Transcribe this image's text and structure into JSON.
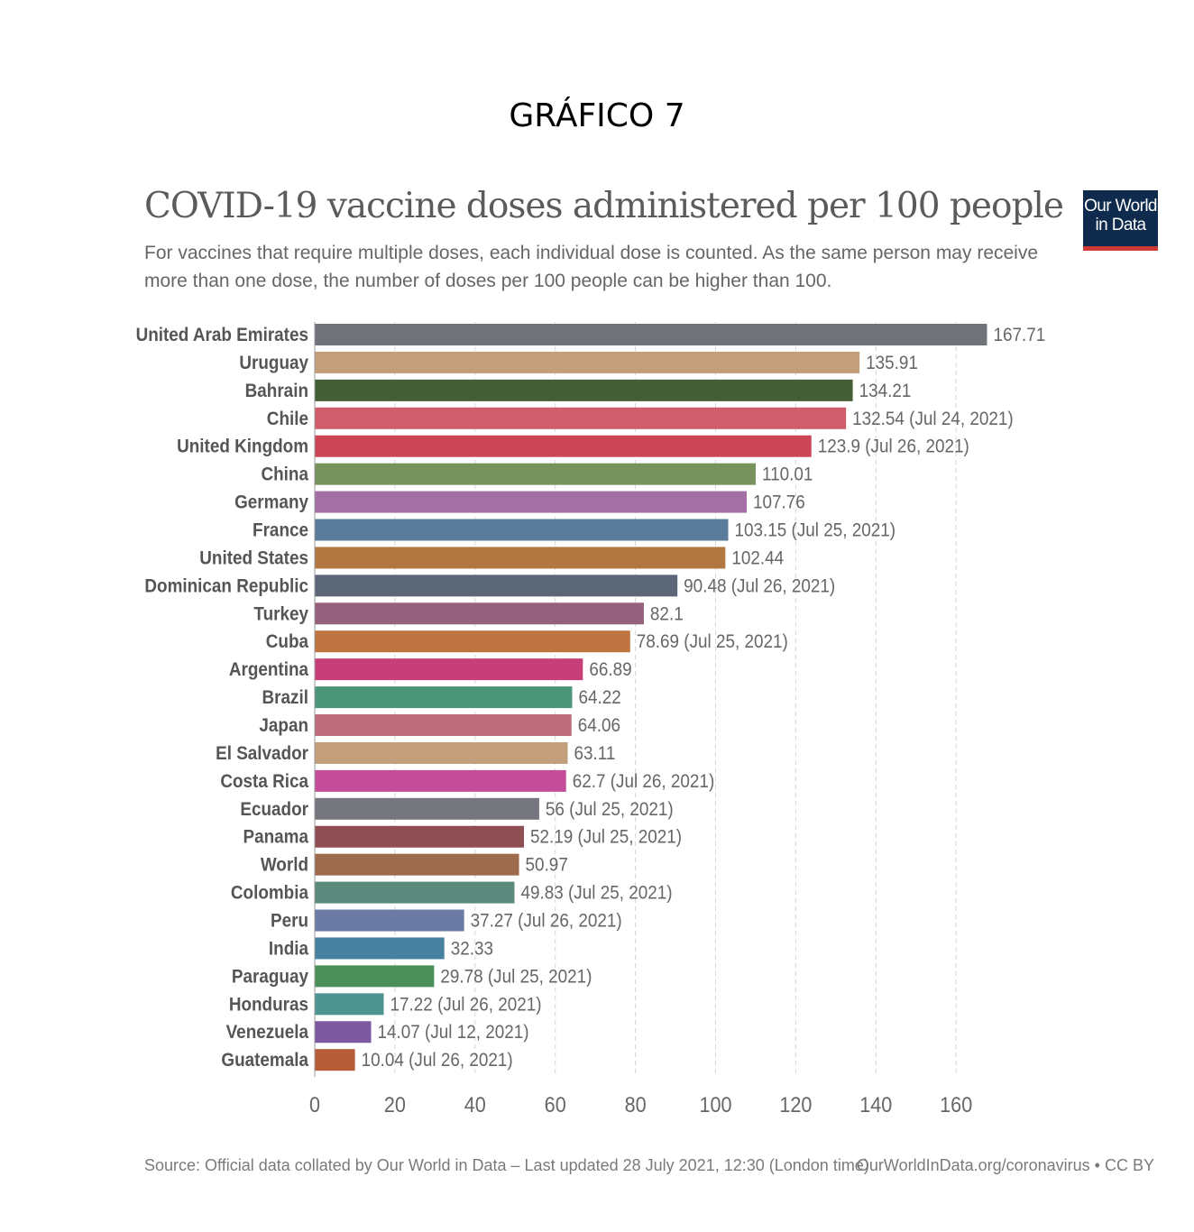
{
  "heading": "GRÁFICO 7",
  "logo": {
    "line1": "Our World",
    "line2": "in Data"
  },
  "footer": {
    "source": "Source: Official data collated by Our World in Data – Last updated 28 July 2021, 12:30 (London time)",
    "url": "OurWorldInData.org/coronavirus • CC BY"
  },
  "chart_data": {
    "type": "bar",
    "orientation": "horizontal",
    "title": "COVID-19 vaccine doses administered per 100 people",
    "subtitle": "For vaccines that require multiple doses, each individual dose is counted. As the same person may receive more than one dose, the number of doses per 100 people can be higher than 100.",
    "xlim": [
      0,
      170
    ],
    "xticks": [
      0,
      20,
      40,
      60,
      80,
      100,
      120,
      140,
      160
    ],
    "grid": "vertical dashed",
    "categories": [
      "United Arab Emirates",
      "Uruguay",
      "Bahrain",
      "Chile",
      "United Kingdom",
      "China",
      "Germany",
      "France",
      "United States",
      "Dominican Republic",
      "Turkey",
      "Cuba",
      "Argentina",
      "Brazil",
      "Japan",
      "El Salvador",
      "Costa Rica",
      "Ecuador",
      "Panama",
      "World",
      "Colombia",
      "Peru",
      "India",
      "Paraguay",
      "Honduras",
      "Venezuela",
      "Guatemala"
    ],
    "values": [
      167.71,
      135.91,
      134.21,
      132.54,
      123.9,
      110.01,
      107.76,
      103.15,
      102.44,
      90.48,
      82.1,
      78.69,
      66.89,
      64.22,
      64.06,
      63.11,
      62.7,
      56,
      52.19,
      50.97,
      49.83,
      37.27,
      32.33,
      29.78,
      17.22,
      14.07,
      10.04
    ],
    "labels": [
      "167.71",
      "135.91",
      "134.21",
      "132.54 (Jul 24, 2021)",
      "123.9 (Jul 26, 2021)",
      "110.01",
      "107.76",
      "103.15 (Jul 25, 2021)",
      "102.44",
      "90.48 (Jul 26, 2021)",
      "82.1",
      "78.69 (Jul 25, 2021)",
      "66.89",
      "64.22",
      "64.06",
      "63.11",
      "62.7 (Jul 26, 2021)",
      "56 (Jul 25, 2021)",
      "52.19 (Jul 25, 2021)",
      "50.97",
      "49.83 (Jul 25, 2021)",
      "37.27 (Jul 26, 2021)",
      "32.33",
      "29.78 (Jul 25, 2021)",
      "17.22 (Jul 26, 2021)",
      "14.07 (Jul 12, 2021)",
      "10.04 (Jul 26, 2021)"
    ],
    "colors": [
      "#71737b",
      "#c29f7a",
      "#445e38",
      "#d05d6c",
      "#cd4658",
      "#78925e",
      "#a46fa5",
      "#5a7b9a",
      "#b27641",
      "#5b6677",
      "#94607b",
      "#bd7441",
      "#c73f79",
      "#4b9578",
      "#be6c7b",
      "#c29f7a",
      "#c54c98",
      "#76767f",
      "#8f4e53",
      "#9e6a4c",
      "#5b8a7d",
      "#6c7aa6",
      "#46819f",
      "#4a8f58",
      "#4d958e",
      "#7c59a1",
      "#b65c39"
    ]
  }
}
